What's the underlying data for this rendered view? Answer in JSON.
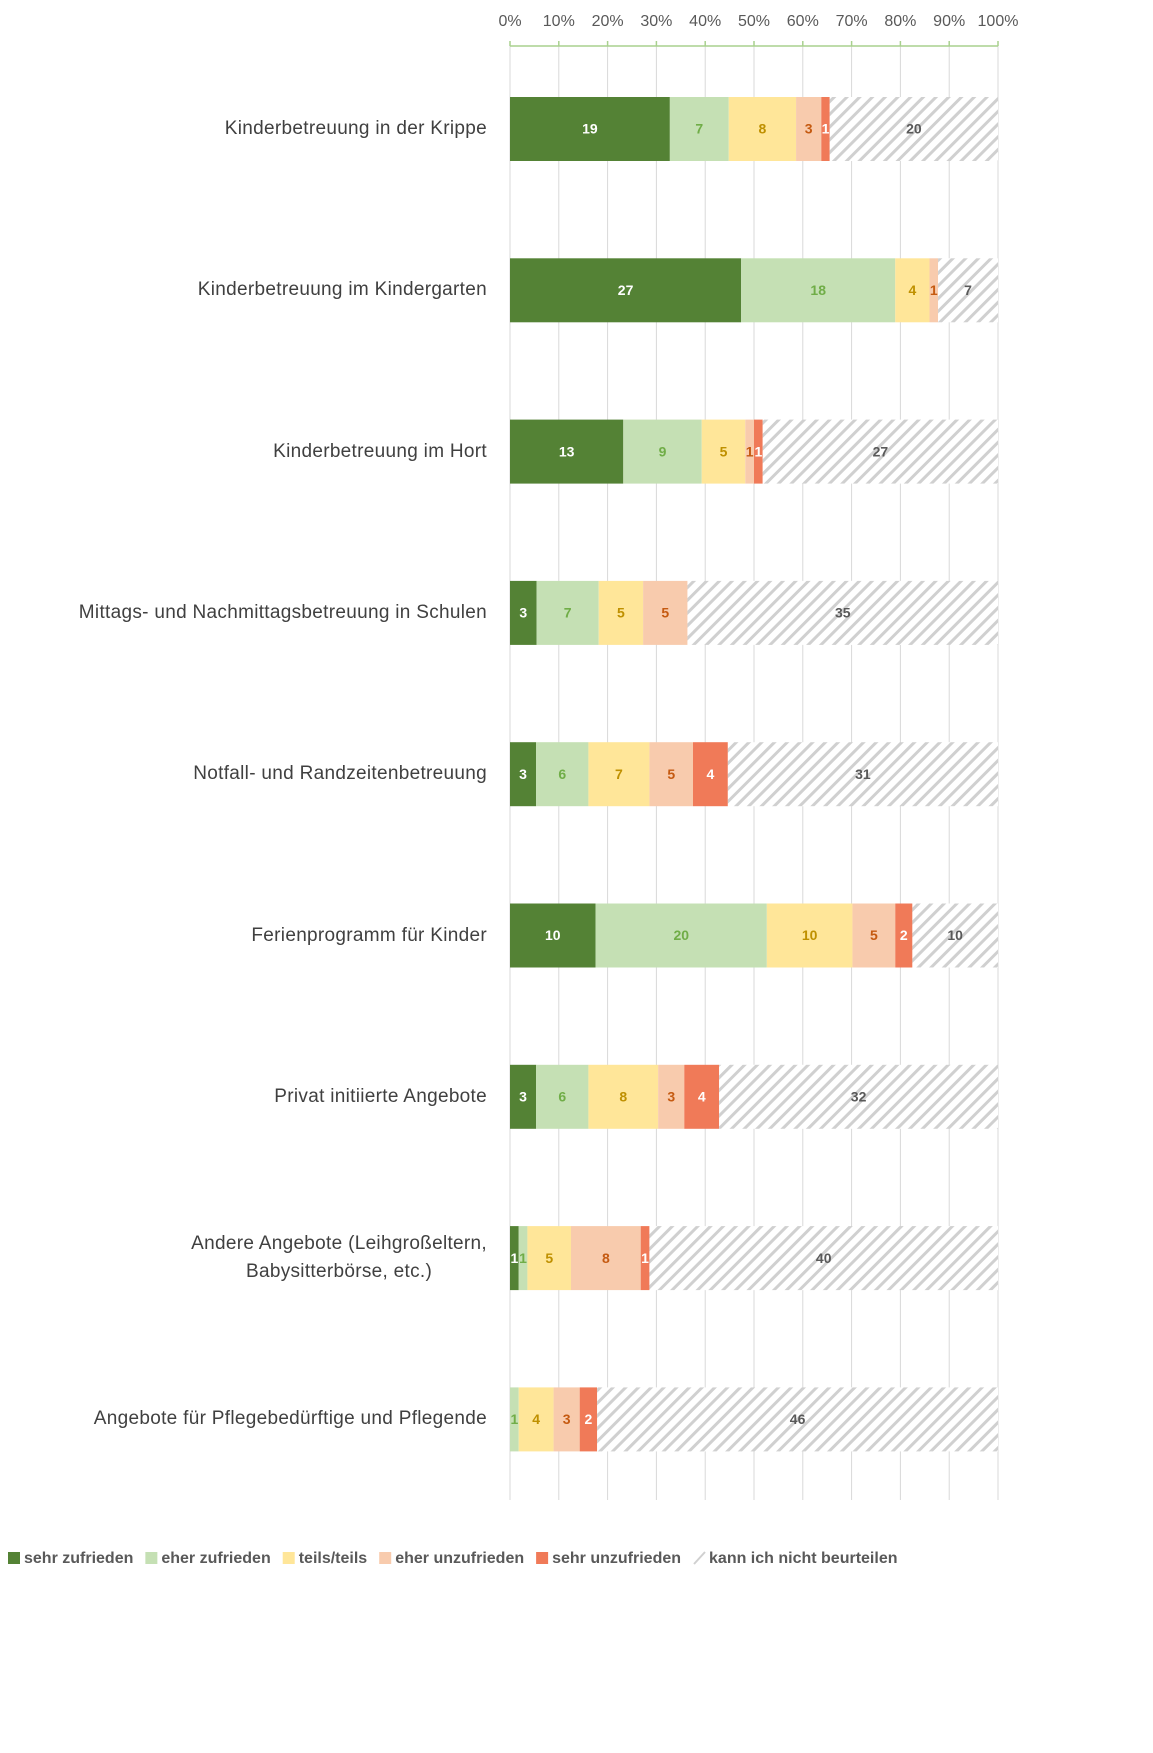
{
  "chart_data": {
    "type": "bar",
    "orientation": "horizontal",
    "stacked": "percent",
    "categories": [
      "Kinderbetreuung in der Krippe",
      "Kinderbetreuung im Kindergarten",
      "Kinderbetreuung im Hort",
      "Mittags- und Nachmittagsbetreuung in Schulen",
      "Notfall- und Randzeitenbetreuung",
      "Ferienprogramm für Kinder",
      "Privat initiierte Angebote",
      "Andere Angebote (Leihgroßeltern,\nBabysitterbörse, etc.)",
      "Angebote für Pflegebedürftige und Pflegende"
    ],
    "series": [
      {
        "name": "sehr zufrieden",
        "color": "#548235",
        "label_color": "#ffffff",
        "values": [
          19,
          27,
          13,
          3,
          3,
          10,
          3,
          1,
          null
        ]
      },
      {
        "name": "eher zufrieden",
        "color": "#c5e0b4",
        "label_color": "#70ad47",
        "values": [
          7,
          18,
          9,
          7,
          6,
          20,
          6,
          1,
          1
        ]
      },
      {
        "name": "teils/teils",
        "color": "#ffe699",
        "label_color": "#bf9000",
        "values": [
          8,
          4,
          5,
          5,
          7,
          10,
          8,
          5,
          4
        ]
      },
      {
        "name": "eher unzufrieden",
        "color": "#f8cbad",
        "label_color": "#c55a11",
        "values": [
          3,
          1,
          1,
          5,
          5,
          5,
          3,
          8,
          3
        ]
      },
      {
        "name": "sehr unzufrieden",
        "color": "#f07a58",
        "label_color": "#ffffff",
        "values": [
          1,
          null,
          1,
          null,
          4,
          2,
          4,
          1,
          2
        ]
      },
      {
        "name": "kann ich nicht beurteilen",
        "color": "hatch",
        "label_color": "#595959",
        "values": [
          20,
          7,
          27,
          35,
          31,
          10,
          32,
          40,
          46
        ]
      }
    ],
    "xlim": [
      0,
      100
    ],
    "xticks": [
      {
        "value": 0,
        "label": "0%"
      },
      {
        "value": 10,
        "label": "10%"
      },
      {
        "value": 20,
        "label": "20%"
      },
      {
        "value": 30,
        "label": "30%"
      },
      {
        "value": 40,
        "label": "40%"
      },
      {
        "value": 50,
        "label": "50%"
      },
      {
        "value": 60,
        "label": "60%"
      },
      {
        "value": 70,
        "label": "70%"
      },
      {
        "value": 80,
        "label": "80%"
      },
      {
        "value": 90,
        "label": "90%"
      },
      {
        "value": 100,
        "label": "100%"
      }
    ],
    "grid": true,
    "legend": "bottom"
  }
}
